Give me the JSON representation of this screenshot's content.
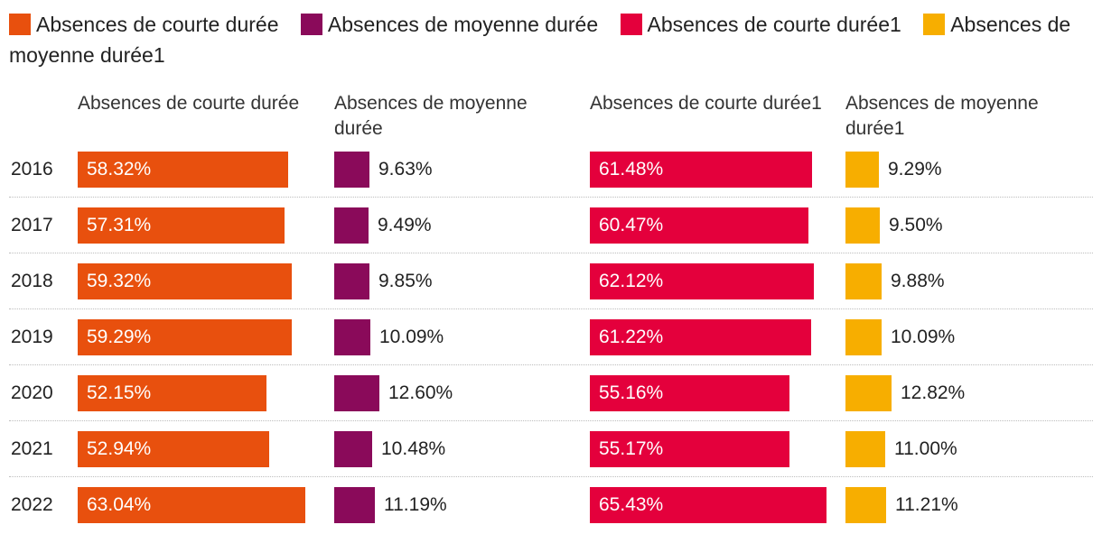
{
  "chart_data": {
    "type": "bar",
    "title": "",
    "legend_position": "top",
    "categories": [
      "2016",
      "2017",
      "2018",
      "2019",
      "2020",
      "2021",
      "2022"
    ],
    "series": [
      {
        "name": "Absences de courte durée",
        "color": "#E8500E",
        "values": [
          58.32,
          57.31,
          59.32,
          59.29,
          52.15,
          52.94,
          63.04
        ],
        "labels": [
          "58.32%",
          "57.31%",
          "59.32%",
          "59.29%",
          "52.15%",
          "52.94%",
          "63.04%"
        ]
      },
      {
        "name": "Absences de moyenne durée",
        "color": "#8A0A5A",
        "values": [
          9.63,
          9.49,
          9.85,
          10.09,
          12.6,
          10.48,
          11.19
        ],
        "labels": [
          "9.63%",
          "9.49%",
          "9.85%",
          "10.09%",
          "12.60%",
          "10.48%",
          "11.19%"
        ]
      },
      {
        "name": "Absences de courte durée1",
        "color": "#E4003C",
        "values": [
          61.48,
          60.47,
          62.12,
          61.22,
          55.16,
          55.17,
          65.43
        ],
        "labels": [
          "61.48%",
          "60.47%",
          "62.12%",
          "61.22%",
          "55.16%",
          "55.17%",
          "65.43%"
        ]
      },
      {
        "name": "Absences de moyenne durée1",
        "color": "#F7AE00",
        "values": [
          9.29,
          9.5,
          9.88,
          10.09,
          12.82,
          11.0,
          11.21
        ],
        "labels": [
          "9.29%",
          "9.50%",
          "9.88%",
          "10.09%",
          "12.82%",
          "11.00%",
          "11.21%"
        ]
      }
    ]
  }
}
